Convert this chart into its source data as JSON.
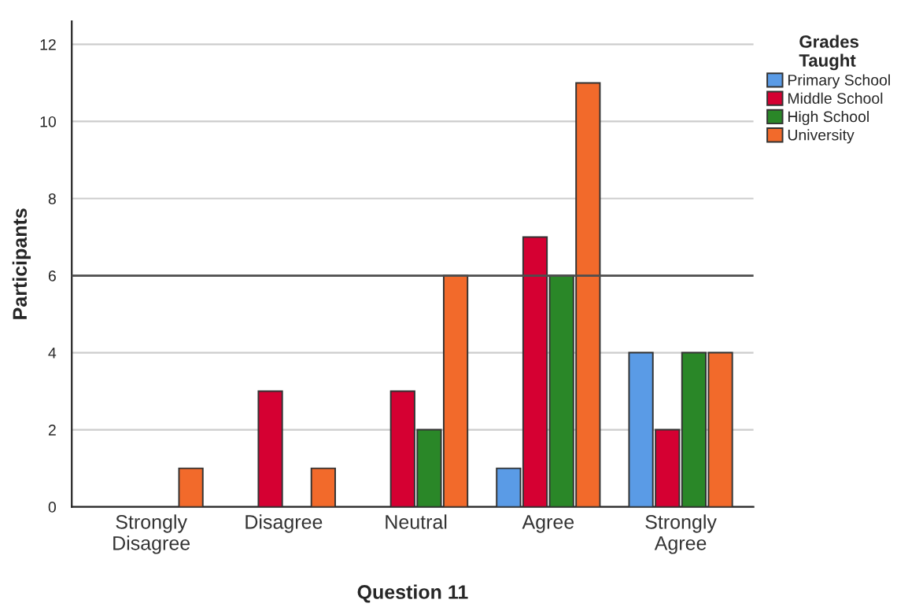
{
  "chart_data": {
    "type": "bar",
    "xlabel": "Question 11",
    "ylabel": "Participants",
    "legend_title": "Grades\nTaught",
    "categories": [
      "Strongly\nDisagree",
      "Disagree",
      "Neutral",
      "Agree",
      "Strongly\nAgree"
    ],
    "series": [
      {
        "name": "Primary School",
        "color": "#5a9be6",
        "values": [
          null,
          null,
          null,
          1,
          4
        ]
      },
      {
        "name": "Middle School",
        "color": "#d50032",
        "values": [
          null,
          3,
          3,
          7,
          2
        ]
      },
      {
        "name": "High School",
        "color": "#2a8728",
        "values": [
          null,
          null,
          2,
          6,
          4
        ]
      },
      {
        "name": "University",
        "color": "#f26a2b",
        "values": [
          1,
          1,
          6,
          11,
          4
        ]
      }
    ],
    "ylim": [
      0,
      12.6
    ],
    "yticks": [
      0,
      2,
      4,
      6,
      8,
      10,
      12
    ],
    "grid": "y",
    "legend": "top right",
    "ref_lines": [
      {
        "axis": "y",
        "value": 6,
        "color": "#4d4d4d"
      }
    ]
  }
}
